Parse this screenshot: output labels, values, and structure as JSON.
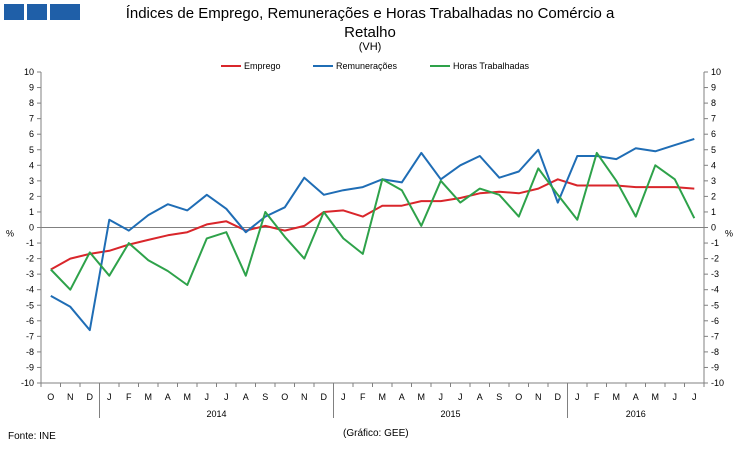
{
  "header": {
    "title": "Índices de Emprego, Remunerações e Horas Trabalhadas no Comércio a Retalho",
    "subtitle": "(VH)"
  },
  "footer": {
    "source": "Fonte: INE",
    "credit": "(Gráfico: GEE)"
  },
  "chart_data": {
    "type": "line",
    "title": "Índices de Emprego, Remunerações e Horas Trabalhadas no Comércio a Retalho",
    "subtitle": "(VH)",
    "ylabel": "%",
    "ylim": [
      -10,
      10
    ],
    "yticks": [
      -10,
      -9,
      -8,
      -7,
      -6,
      -5,
      -4,
      -3,
      -2,
      -1,
      0,
      1,
      2,
      3,
      4,
      5,
      6,
      7,
      8,
      9,
      10
    ],
    "legend_position": "top",
    "categories": [
      "O",
      "N",
      "D",
      "J",
      "F",
      "M",
      "A",
      "M",
      "J",
      "J",
      "A",
      "S",
      "O",
      "N",
      "D",
      "J",
      "F",
      "M",
      "A",
      "M",
      "J",
      "J",
      "A",
      "S",
      "O",
      "N",
      "D",
      "J",
      "F",
      "M",
      "A",
      "M",
      "J",
      "J"
    ],
    "year_groups": [
      {
        "label": "",
        "start": 0,
        "end": 2
      },
      {
        "label": "2014",
        "start": 3,
        "end": 14
      },
      {
        "label": "2015",
        "start": 15,
        "end": 26
      },
      {
        "label": "2016",
        "start": 27,
        "end": 33
      }
    ],
    "series": [
      {
        "name": "Emprego",
        "color": "#d9262b",
        "values": [
          -2.7,
          -2.0,
          -1.7,
          -1.5,
          -1.1,
          -0.8,
          -0.5,
          -0.3,
          0.2,
          0.4,
          -0.2,
          0.1,
          -0.2,
          0.1,
          1.0,
          1.1,
          0.7,
          1.4,
          1.4,
          1.7,
          1.7,
          1.9,
          2.2,
          2.3,
          2.2,
          2.5,
          3.1,
          2.7,
          2.7,
          2.7,
          2.6,
          2.6,
          2.6,
          2.5
        ]
      },
      {
        "name": "Remunerações",
        "color": "#1f6db5",
        "values": [
          -4.4,
          -5.1,
          -6.6,
          0.5,
          -0.2,
          0.8,
          1.5,
          1.1,
          2.1,
          1.2,
          -0.3,
          0.7,
          1.3,
          3.2,
          2.1,
          2.4,
          2.6,
          3.1,
          2.9,
          4.8,
          3.1,
          4.0,
          4.6,
          3.2,
          3.6,
          5.0,
          1.6,
          4.6,
          4.6,
          4.4,
          5.1,
          4.9,
          5.3,
          5.7
        ]
      },
      {
        "name": "Horas Trabalhadas",
        "color": "#2ea24a",
        "values": [
          -2.7,
          -4.0,
          -1.6,
          -3.1,
          -1.0,
          -2.1,
          -2.8,
          -3.7,
          -0.7,
          -0.3,
          -3.1,
          1.0,
          -0.6,
          -2.0,
          1.0,
          -0.7,
          -1.7,
          3.1,
          2.4,
          0.1,
          3.0,
          1.6,
          2.5,
          2.1,
          0.7,
          3.8,
          2.1,
          0.5,
          4.8,
          3.0,
          0.7,
          4.0,
          3.1,
          0.6
        ]
      }
    ]
  }
}
